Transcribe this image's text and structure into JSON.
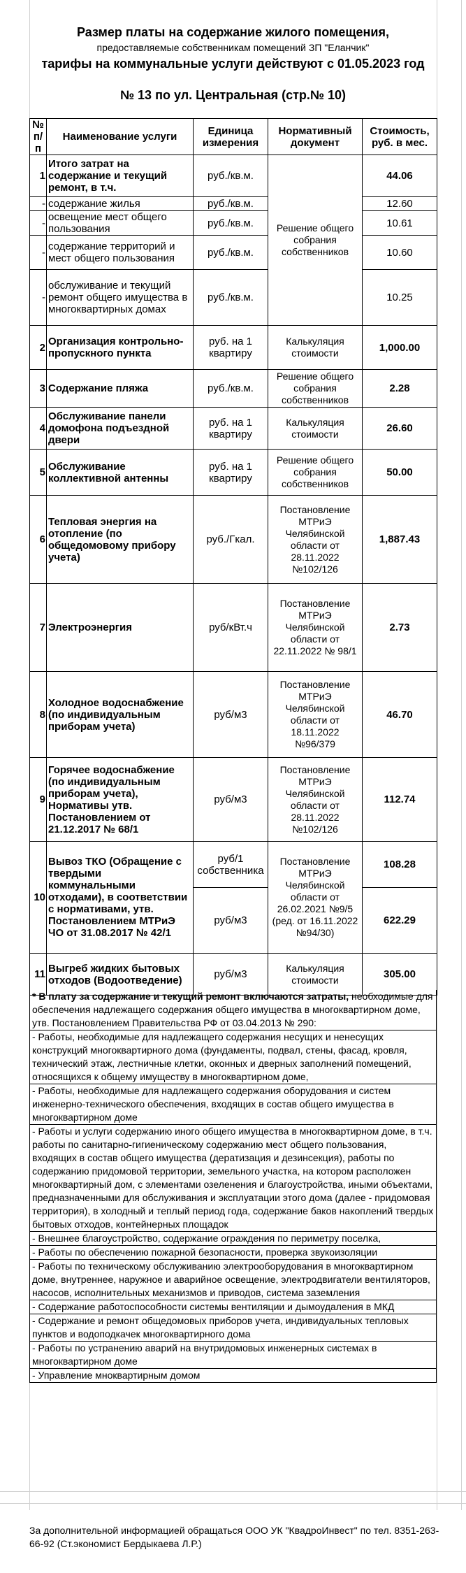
{
  "header": {
    "title": "Размер платы на содержание жилого помещения,",
    "subtitle": "предоставляемые собственникам помещений ЗП \"Еланчик\"",
    "tariffs": "тарифы на коммунальные услуги действуют с 01.05.2023 год",
    "address": "№ 13 по ул. Центральная (стр.№ 10)"
  },
  "table": {
    "columns": [
      "№ п/п",
      "Наименование услуги",
      "Единица измерения",
      "Нормативный документ",
      "Стоимость, руб. в мес."
    ],
    "rows": [
      {
        "num": "1",
        "name": "Итого затрат на содержание и текущий ремонт, в т.ч.",
        "unit": "руб./кв.м.",
        "document": "Решение общего собрания собственников",
        "cost": "44.06"
      },
      {
        "num": "-",
        "name": "содержание жилья",
        "unit": "руб./кв.м.",
        "cost": "12.60"
      },
      {
        "num": "-",
        "name": "освещение мест общего пользования",
        "unit": "руб./кв.м.",
        "cost": "10.61"
      },
      {
        "num": "-",
        "name": "содержание территорий и мест общего пользования",
        "unit": "руб./кв.м.",
        "cost": "10.60"
      },
      {
        "num": "-",
        "name": "обслуживание и текущий ремонт общего имущества в многоквартирных домах",
        "unit": "руб./кв.м.",
        "cost": "10.25"
      },
      {
        "num": "2",
        "name": "Организация контрольно-пропускного пункта",
        "unit": "руб. на 1 квартиру",
        "document": "Калькуляция стоимости",
        "cost": "1,000.00"
      },
      {
        "num": "3",
        "name": "Содержание пляжа",
        "unit": "руб./кв.м.",
        "document": "Решение общего собрания собственников",
        "cost": "2.28"
      },
      {
        "num": "4",
        "name": "Обслуживание панели домофона подъездной двери",
        "unit": "руб. на 1 квартиру",
        "document": "Калькуляция стоимости",
        "cost": "26.60"
      },
      {
        "num": "5",
        "name": "Обслуживание коллективной антенны",
        "unit": "руб. на 1 квартиру",
        "document": "Решение общего собрания собственников",
        "cost": "50.00"
      },
      {
        "num": "6",
        "name": "Тепловая энергия на отопление (по общедомовому прибору учета)",
        "unit": "руб./Гкал.",
        "document": "Постановление МТРиЭ Челябинской области от 28.11.2022 №102/126",
        "cost": "1,887.43"
      },
      {
        "num": "7",
        "name": "Электроэнергия",
        "unit": "руб/кВт.ч",
        "document": "Постановление МТРиЭ Челябинской области от 22.11.2022 № 98/1",
        "cost": "2.73"
      },
      {
        "num": "8",
        "name": "Холодное водоснабжение (по индивидуальным приборам учета)",
        "unit": "руб/м3",
        "document": "Постановление МТРиЭ Челябинской области от 18.11.2022 №96/379",
        "cost": "46.70"
      },
      {
        "num": "9",
        "name": "Горячее водоснабжение (по индивидуальным приборам учета), Нормативы утв. Постановлением от 21.12.2017 № 68/1",
        "unit": "руб/м3",
        "document": "Постановление МТРиЭ Челябинской области от 28.11.2022 №102/126",
        "cost": "112.74"
      },
      {
        "num": "10",
        "name": "Вывоз ТКО (Обращение с твердыми коммунальными отходами), в соответствии с нормативами, утв. Постановлением МТРиЭ ЧО от 31.08.2017 № 42/1",
        "unit": [
          "руб/1 собственника",
          "руб/м3"
        ],
        "document": "Постановление МТРиЭ Челябинской области от 26.02.2021 №9/5 (ред. от 16.11.2022 №94/30)",
        "cost": [
          "108.28",
          "622.29"
        ]
      },
      {
        "num": "11",
        "name": "Выгреб жидких бытовых отходов (Водоотведение)",
        "unit": "руб/м3",
        "document": "Калькуляция стоимости",
        "cost": "305.00"
      }
    ]
  },
  "notes": {
    "lead_bold": "* В плату за содержание и текущий ремонт включаются затраты,",
    "lead": "необходимые для обеспечения надлежащего содержания общего имущества в многоквартирном доме, утв. Постановлением Правительства РФ от 03.04.2013 № 290:",
    "items": [
      " - Работы, необходимые для надлежащего содержания несущих и ненесущих конструкций многоквартирного дома (фундаменты, подвал, стены, фасад, кровля, технический этаж, лестничные клетки, оконных и дверных заполнений помещений, относящихся к общему имуществу в многоквартирном доме,",
      " - Работы, необходимые для надлежащего содержания оборудования и систем инженерно-технического обеспечения, входящих в состав общего имущества в многоквартирном доме",
      " - Работы и услуги содержанию иного общего имущества в многоквартирном доме, в т.ч. работы по санитарно-гигиеническому содержанию мест общего пользования, входящих в состав общего имущества (дератизация и дезинсекция), работы по содержанию придомовой территории, земельного участка, на котором расположен многоквартирный дом, с элементами озеленения и благоустройства, иными объектами, предназначенными для обслуживания и эксплуатации этого дома (далее - придомовая территория), в холодный и теплый период года, содержание баков накоплений твердых бытовых отходов, контейнерных площадок",
      " - Внешнее благоустройство, содержание ограждения по периметру поселка,",
      " - Работы по обеспечению пожарной безопасности, проверка звукоизоляции",
      " - Работы по техническому обслуживанию электрооборудования в многоквартирном доме, внутреннее, наружное и аварийное освещение, электродвигатели вентиляторов, насосов, исполнительных механизмов и приводов, система заземления",
      " - Содержание работоспособности системы вентиляции и дымоудаления в МКД",
      " - Содержание и ремонт общедомовых приборов учета, индивидуальных тепловых пунктов и водоподкачек многоквартирного дома",
      " - Работы по устранению аварий на внутридомовых инженерных системах в многоквартирном доме",
      " - Управление мноквартирным домом"
    ]
  },
  "footer": "За дополнительной информацией обращаться ООО УК \"КвадроИнвест\" по тел. 8351-263-66-92 (Ст.экономист Бердыкаева Л.Р.)"
}
